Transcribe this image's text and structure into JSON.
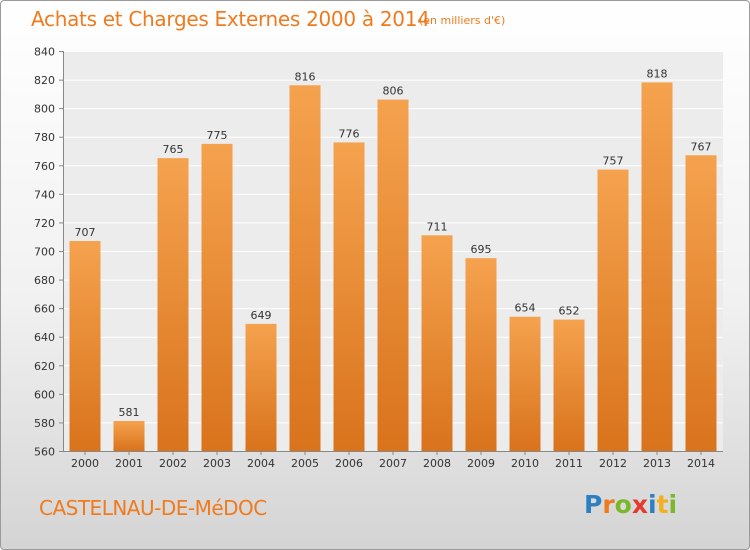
{
  "header": {
    "title": "Achats et Charges Externes 2000 à 2014",
    "subtitle": "(en milliers d'€)"
  },
  "footer": {
    "location": "CASTELNAU-DE-MéDOC",
    "logo_text": "Proxiti",
    "logo_colors": [
      "#2e7fc1",
      "#f07a1e",
      "#7ab829",
      "#e63a2f",
      "#2e7fc1",
      "#f2b01e",
      "#7ab829"
    ]
  },
  "chart_data": {
    "type": "bar",
    "title": "Achats et Charges Externes 2000 à 2014",
    "subtitle": "(en milliers d'€)",
    "categories": [
      "2000",
      "2001",
      "2002",
      "2003",
      "2004",
      "2005",
      "2006",
      "2007",
      "2008",
      "2009",
      "2010",
      "2011",
      "2012",
      "2013",
      "2014"
    ],
    "values": [
      707,
      581,
      765,
      775,
      649,
      816,
      776,
      806,
      711,
      695,
      654,
      652,
      757,
      818,
      767
    ],
    "ylim": [
      560,
      840
    ],
    "yticks": [
      560,
      580,
      600,
      620,
      640,
      660,
      680,
      700,
      720,
      740,
      760,
      780,
      800,
      820,
      840
    ],
    "grid": true,
    "bar_color_top": "#f5a24e",
    "bar_color_bottom": "#d9731c"
  }
}
